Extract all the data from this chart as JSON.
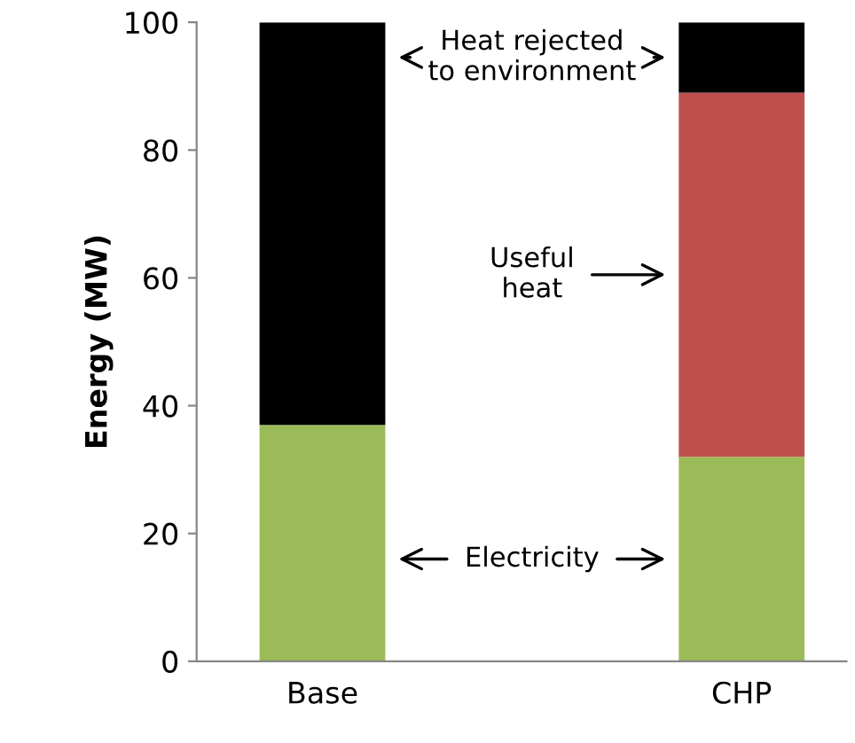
{
  "chart_data": {
    "type": "bar",
    "stacked": true,
    "ylabel": "Energy (MW)",
    "categories": [
      "Base",
      "CHP"
    ],
    "series": [
      {
        "color": "#9bbb59",
        "values": [
          37,
          32
        ]
      },
      {
        "color": "#c0504d",
        "values": [
          0,
          57
        ]
      },
      {
        "color": "#000000",
        "values": [
          63,
          11
        ]
      }
    ],
    "annotations": [
      "Electricity",
      "Useful\nheat",
      "Heat rejected\nto environment"
    ],
    "ylim": [
      0,
      100
    ],
    "yticks": [
      0,
      20,
      40,
      60,
      80,
      100
    ],
    "grid": false
  }
}
